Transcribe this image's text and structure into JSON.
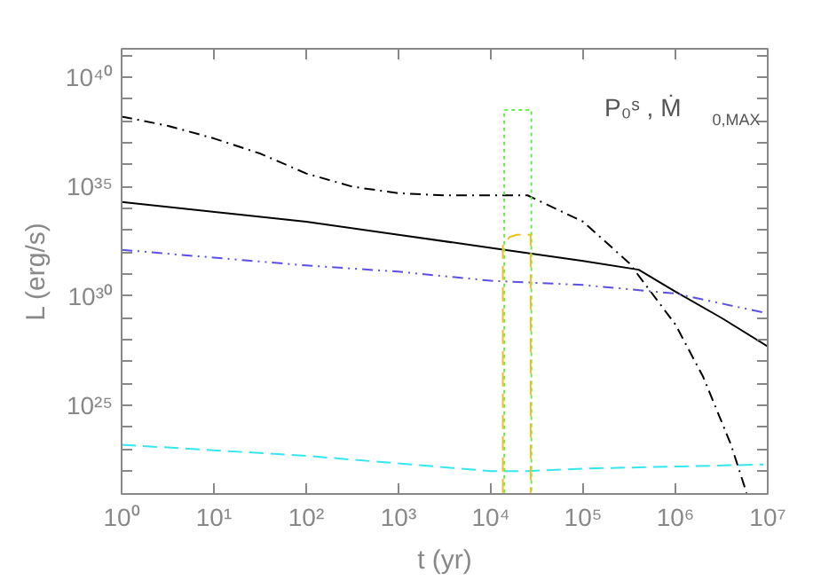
{
  "chart_data": {
    "type": "line",
    "xlabel": "t (yr)",
    "ylabel": "L (erg/s)",
    "log": "xy",
    "grid": false,
    "xlim": [
      1,
      10000000
    ],
    "ylim": [
      9e+20,
      2e+41
    ],
    "xticks": [
      {
        "value": 1,
        "label": "10⁰"
      },
      {
        "value": 10,
        "label": "10¹"
      },
      {
        "value": 100,
        "label": "10²"
      },
      {
        "value": 1000,
        "label": "10³"
      },
      {
        "value": 10000,
        "label": "10⁴"
      },
      {
        "value": 100000,
        "label": "10⁵"
      },
      {
        "value": 1000000,
        "label": "10⁶"
      },
      {
        "value": 10000000,
        "label": "10⁷"
      }
    ],
    "yticks": [
      {
        "value": 1e+22,
        "label": null
      },
      {
        "value": 1e+23,
        "label": null
      },
      {
        "value": 1e+24,
        "label": null
      },
      {
        "value": 1e+25,
        "label": "10²⁵"
      },
      {
        "value": 1e+26,
        "label": null
      },
      {
        "value": 1e+27,
        "label": null
      },
      {
        "value": 1e+28,
        "label": null
      },
      {
        "value": 1e+29,
        "label": null
      },
      {
        "value": 1e+30,
        "label": "10³⁰"
      },
      {
        "value": 1e+31,
        "label": null
      },
      {
        "value": 1e+32,
        "label": null
      },
      {
        "value": 1e+33,
        "label": null
      },
      {
        "value": 1e+34,
        "label": null
      },
      {
        "value": 1e+35,
        "label": "10³⁵"
      },
      {
        "value": 1e+36,
        "label": null
      },
      {
        "value": 1e+37,
        "label": null
      },
      {
        "value": 1e+38,
        "label": null
      },
      {
        "value": 1e+39,
        "label": null
      },
      {
        "value": 1e+40,
        "label": "10⁴⁰"
      },
      {
        "value": 1e+41,
        "label": null
      }
    ],
    "annotations": [
      "P₀ˢ , Ṁ$_{0,MAX}$"
    ],
    "series": [
      {
        "color": "#000000",
        "line_style": "dashdot",
        "x": [
          1,
          3.2,
          10,
          32,
          100,
          316,
          1000,
          3162,
          25000,
          100000,
          316000,
          1000000,
          2000000,
          4000000,
          5900000
        ],
        "values": [
          1.6e+38,
          6e+37,
          1.6e+37,
          3.2e+36,
          4e+35,
          1e+35,
          5e+34,
          4e+34,
          4e+34,
          2.5e+33,
          3.2e+31,
          5e+28,
          2e+26,
          1.6e+23,
          1e+21
        ]
      },
      {
        "color": "#000000",
        "line_style": "solid",
        "x": [
          1,
          100,
          1000,
          10000,
          100000,
          400000,
          1000000,
          3162000,
          10000000
        ],
        "values": [
          2e+34,
          2.5e+33,
          6.3e+32,
          1.6e+32,
          4e+31,
          1.6e+31,
          1.6e+30,
          1e+29,
          5e+27
        ]
      },
      {
        "color": "#5a50e6",
        "line_style": "dashdotdot",
        "x": [
          1,
          100,
          1000,
          10000,
          100000,
          1000000,
          10000000
        ],
        "values": [
          1.3e+32,
          2.5e+31,
          1.3e+31,
          5e+30,
          3.2e+30,
          1.3e+30,
          1.6e+29
        ]
      },
      {
        "color": "#33e6f0",
        "line_style": "dashed",
        "x": [
          1,
          100,
          10000,
          25000,
          100000,
          9000000
        ],
        "values": [
          1.6e+23,
          5e+22,
          1e+22,
          1e+22,
          1.3e+22,
          2e+22
        ]
      },
      {
        "color": "#66ee44",
        "line_style": "dotted",
        "x": [
          14000,
          14000,
          27500,
          27500
        ],
        "values": [
          1e+21,
          3.2e+38,
          3.2e+38,
          1e+21
        ]
      },
      {
        "color": "#f0c020",
        "line_style": "dashed",
        "x": [
          13500,
          13500,
          16000,
          19000,
          27000,
          27000
        ],
        "values": [
          1e+21,
          2e+32,
          5e+32,
          6.3e+32,
          6.3e+32,
          1e+21
        ]
      }
    ]
  }
}
